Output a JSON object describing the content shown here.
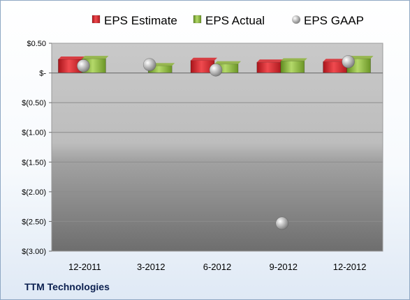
{
  "company": "TTM Technologies",
  "colors": {
    "estimate": "#d9262b",
    "actual": "#8db33a",
    "gaap": "#b8b8b8"
  },
  "chart_data": {
    "type": "bar",
    "categories": [
      "12-2011",
      "3-2012",
      "6-2012",
      "9-2012",
      "12-2012"
    ],
    "series": [
      {
        "name": "EPS Estimate",
        "type": "bar",
        "values": [
          0.23,
          null,
          0.21,
          0.18,
          0.19
        ]
      },
      {
        "name": "EPS Actual",
        "type": "bar",
        "values": [
          0.24,
          0.12,
          0.15,
          0.2,
          0.24
        ]
      },
      {
        "name": "EPS GAAP",
        "type": "scatter",
        "values": [
          0.12,
          0.14,
          0.05,
          -2.53,
          0.19
        ]
      }
    ],
    "ylim": [
      -3.0,
      0.5
    ],
    "yticks": [
      0.5,
      0,
      -0.5,
      -1.0,
      -1.5,
      -2.0,
      -2.5,
      -3.0
    ],
    "ytick_labels": [
      "$0.50",
      "$-",
      "$(0.50)",
      "$(1.00)",
      "$(1.50)",
      "$(2.00)",
      "$(2.50)",
      "$(3.00)"
    ],
    "legend": [
      "EPS Estimate",
      "EPS Actual",
      "EPS GAAP"
    ],
    "legend_position": "top",
    "grid": true
  }
}
